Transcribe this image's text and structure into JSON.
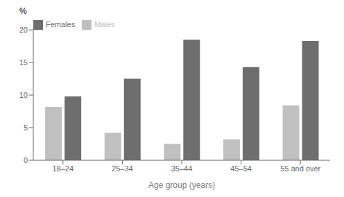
{
  "chart_data": {
    "type": "bar",
    "categories": [
      "18–24",
      "25–34",
      "35–44",
      "45–54",
      "55 and over"
    ],
    "series": [
      {
        "name": "Males",
        "color": "#c0c0c0",
        "values": [
          8.2,
          4.2,
          2.5,
          3.2,
          8.4
        ]
      },
      {
        "name": "Females",
        "color": "#6e6e6e",
        "values": [
          9.8,
          12.5,
          18.5,
          14.3,
          18.3
        ]
      }
    ],
    "xlabel": "Age group (years)",
    "ylabel": "%",
    "ylim": [
      0,
      20
    ],
    "yticks": [
      0,
      5,
      10,
      15,
      20
    ],
    "legend": "upper left",
    "grid": false
  }
}
